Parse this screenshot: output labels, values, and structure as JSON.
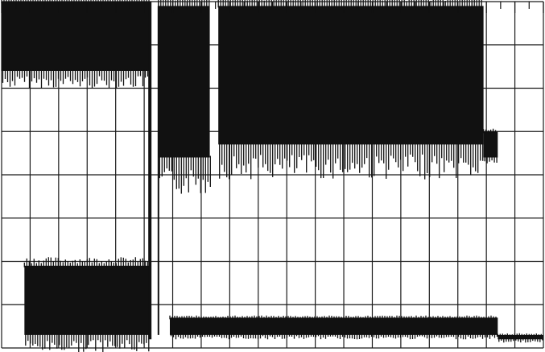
{
  "ink_color": "#111111",
  "grid_color": "#1a1a1a",
  "paper_color": "#ffffff",
  "chart_data": {
    "type": "line",
    "title": "",
    "xlabel": "",
    "ylabel": "",
    "x_divisions": 19,
    "y_divisions": 8,
    "grid": true,
    "ticks_on_top": true,
    "series": [
      {
        "segments": [
          {
            "x0": 0.0,
            "x1": 5.2,
            "top": 8.0,
            "bottom": 6.4
          },
          {
            "x0": 5.5,
            "x1": 7.3,
            "top": 7.9,
            "bottom": 4.4
          },
          {
            "x0": 7.6,
            "x1": 16.9,
            "top": 7.9,
            "bottom": 4.7
          },
          {
            "x0": 16.9,
            "x1": 17.4,
            "top": 5.0,
            "bottom": 4.4
          }
        ]
      },
      {
        "segments": [
          {
            "x0": 0.8,
            "x1": 5.2,
            "top": 1.9,
            "bottom": 0.3
          },
          {
            "x0": 5.9,
            "x1": 17.4,
            "top": 0.7,
            "bottom": 0.3
          },
          {
            "x0": 17.4,
            "x1": 19.0,
            "top": 0.3,
            "bottom": 0.2
          }
        ]
      }
    ]
  }
}
